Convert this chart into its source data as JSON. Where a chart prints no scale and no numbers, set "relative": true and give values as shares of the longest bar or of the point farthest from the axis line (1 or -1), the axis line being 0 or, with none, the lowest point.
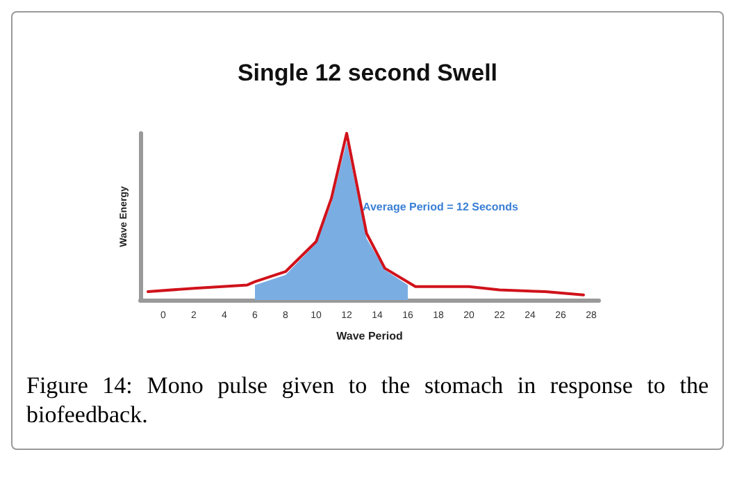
{
  "chart_data": {
    "type": "line",
    "title": "Single 12 second Swell",
    "xlabel": "Wave Period",
    "ylabel": "Wave Energy",
    "relative": true,
    "xlim": [
      -1.5,
      28.5
    ],
    "xticks": [
      0,
      2,
      4,
      6,
      8,
      10,
      12,
      14,
      16,
      18,
      20,
      22,
      24,
      26,
      28
    ],
    "series": [
      {
        "type": "area",
        "color": "#7aaee3",
        "x": [
          6,
          8,
          10,
          11,
          12,
          13.3,
          14.5,
          16
        ],
        "values": [
          0.09,
          0.15,
          0.34,
          0.58,
          0.95,
          0.37,
          0.18,
          0.09
        ]
      },
      {
        "color": "#d0121b",
        "x": [
          -1,
          2,
          5.5,
          6,
          8,
          10,
          11,
          12,
          13.3,
          14.5,
          16.5,
          20,
          22,
          25,
          27.5
        ],
        "values": [
          0.05,
          0.07,
          0.09,
          0.11,
          0.17,
          0.35,
          0.61,
          1,
          0.4,
          0.19,
          0.08,
          0.08,
          0.06,
          0.05,
          0.03
        ]
      }
    ],
    "grid": false,
    "marker": "none",
    "line_style": "solid",
    "annotations": [
      "Average Period = 12 Seconds",
      "Figure 14: Mono pulse given to the stomach in response to the biofeedback."
    ]
  }
}
